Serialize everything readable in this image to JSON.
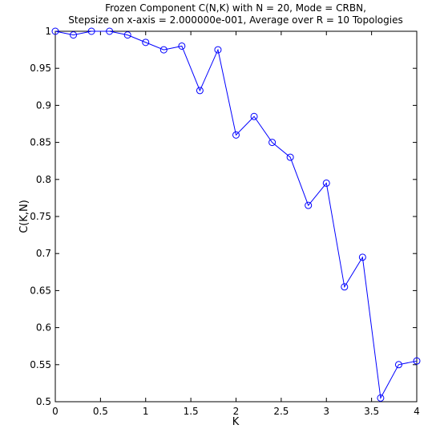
{
  "chart_data": {
    "type": "line",
    "title": [
      "Frozen Component C(N,K) with N = 20, Mode = CRBN,",
      "Stepsize on x-axis = 2.000000e-001,  Average over R = 10 Topologies"
    ],
    "xlabel": "K",
    "ylabel": "C(K,N)",
    "xlim": [
      0,
      4
    ],
    "ylim": [
      0.5,
      1
    ],
    "x_ticks": [
      0,
      0.5,
      1,
      1.5,
      2,
      2.5,
      3,
      3.5,
      4
    ],
    "x_tick_labels": [
      "0",
      "0.5",
      "1",
      "1.5",
      "2",
      "2.5",
      "3",
      "3.5",
      "4"
    ],
    "y_ticks": [
      0.5,
      0.55,
      0.6,
      0.65,
      0.7,
      0.75,
      0.8,
      0.85,
      0.9,
      0.95,
      1
    ],
    "y_tick_labels": [
      "0.5",
      "0.55",
      "0.6",
      "0.65",
      "0.7",
      "0.75",
      "0.8",
      "0.85",
      "0.9",
      "0.95",
      "1"
    ],
    "grid": false,
    "series": [
      {
        "color": "#0000ff",
        "marker": "circle",
        "x": [
          0,
          0.2,
          0.4,
          0.6,
          0.8,
          1.0,
          1.2,
          1.4,
          1.6,
          1.8,
          2.0,
          2.2,
          2.4,
          2.6,
          2.8,
          3.0,
          3.2,
          3.4,
          3.6,
          3.8,
          4.0
        ],
        "y": [
          1.0,
          0.995,
          1.0,
          1.0,
          0.995,
          0.985,
          0.975,
          0.98,
          0.92,
          0.975,
          0.86,
          0.885,
          0.85,
          0.83,
          0.765,
          0.795,
          0.655,
          0.695,
          0.505,
          0.55,
          0.555
        ]
      }
    ]
  }
}
